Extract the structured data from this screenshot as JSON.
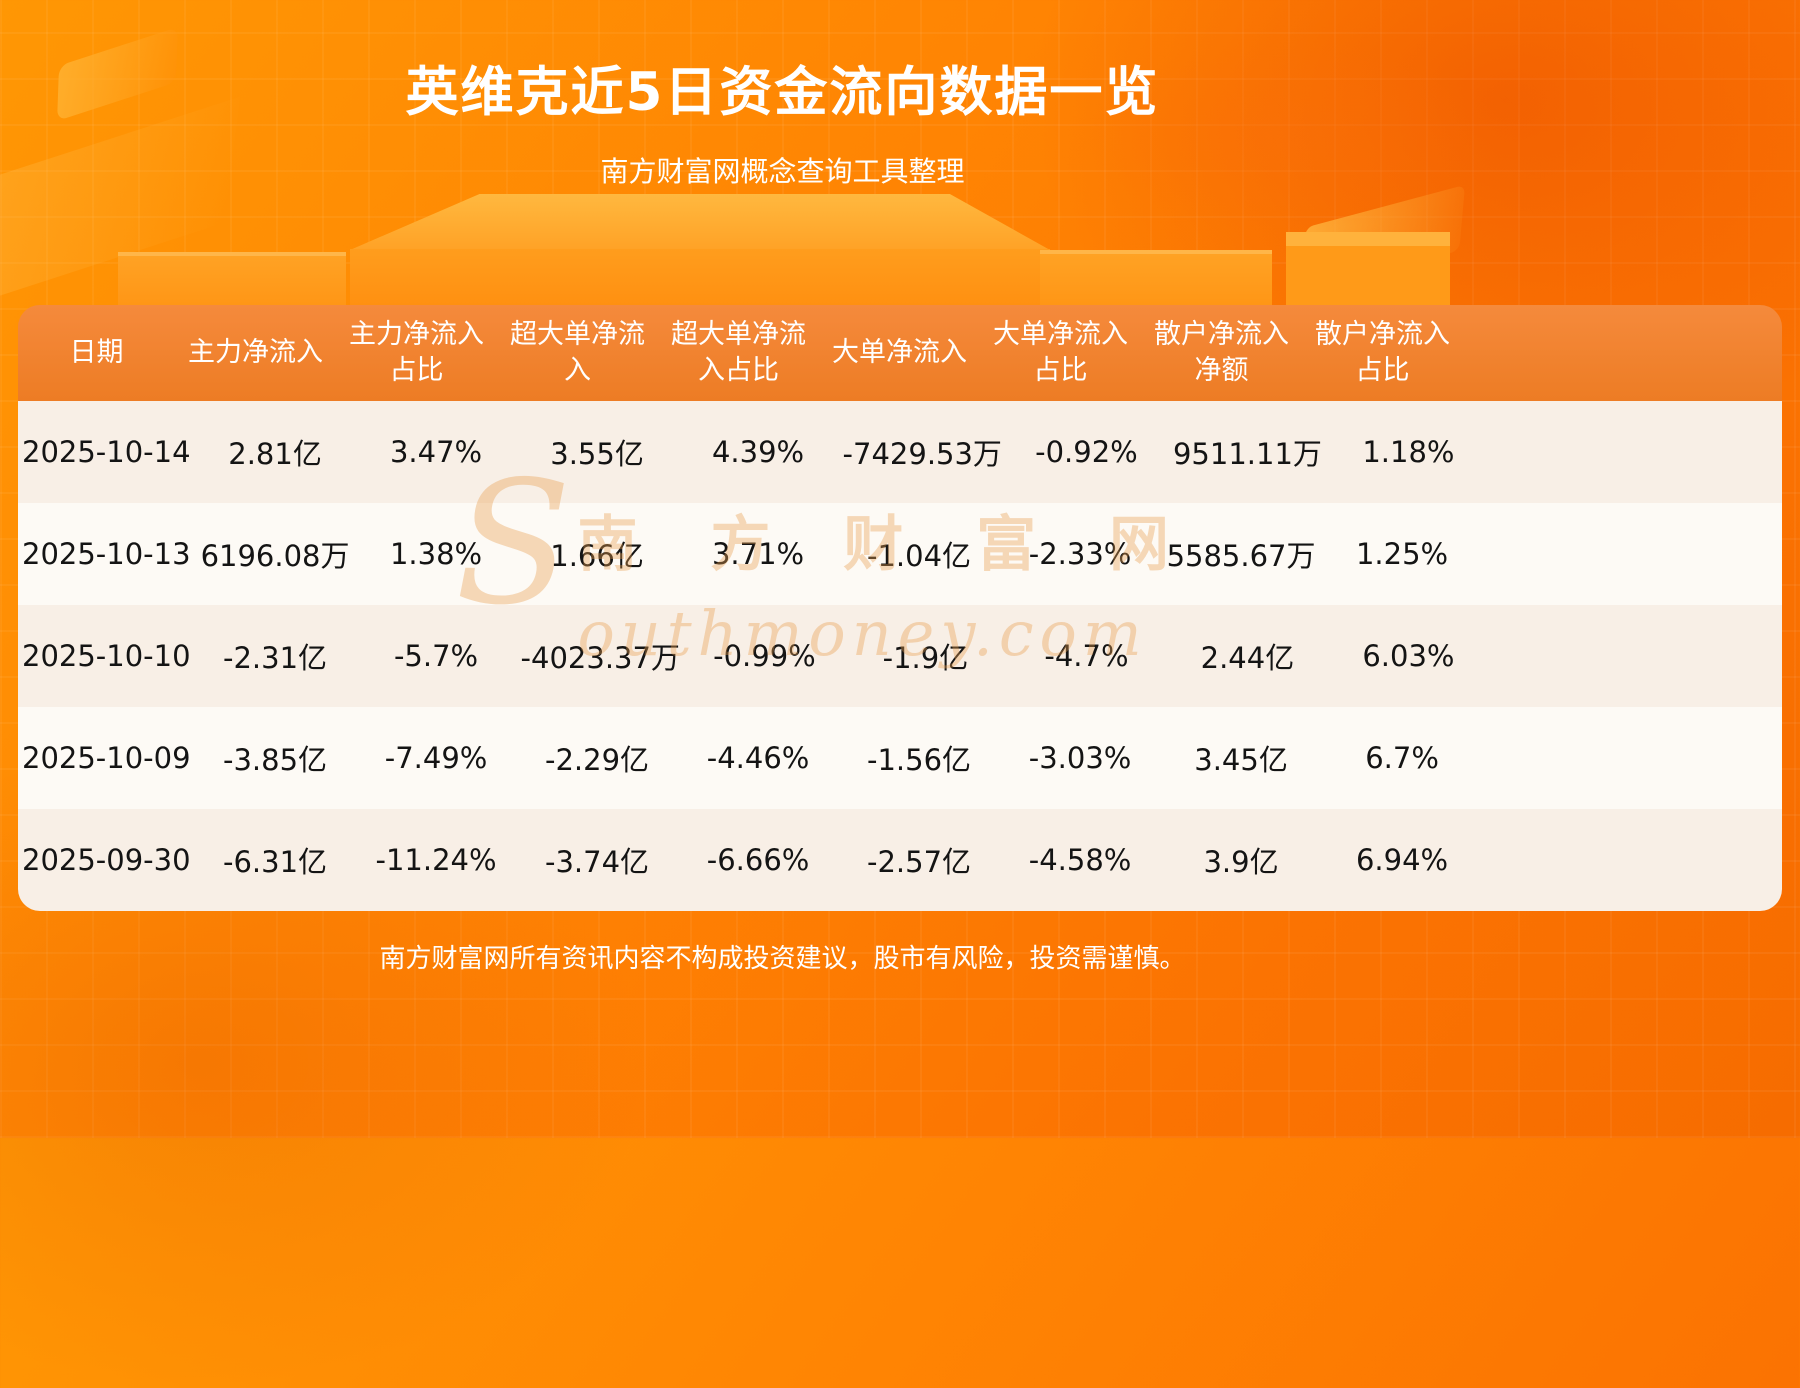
{
  "page": {
    "title": "英维克近5日资金流向数据一览",
    "subtitle": "南方财富网概念查询工具整理",
    "footer": "南方财富网所有资讯内容不构成投资建议，股市有风险，投资需谨慎。"
  },
  "watermark": {
    "initial": "S",
    "chinese": "南 方 财 富 网",
    "latin": "outhmoney.com"
  },
  "colors": {
    "accent": "#ff7a00",
    "table_header_bg": "#ef7f2b",
    "row_cream": "#f8efe6",
    "row_white": "#fdfaf5",
    "title_text": "#ffffff",
    "body_text": "#141414"
  },
  "chart_data": {
    "type": "table",
    "title": "英维克近5日资金流向数据一览",
    "columns": [
      "日期",
      "主力净流入",
      "主力净流入占比",
      "超大单净流入",
      "超大单净流入占比",
      "大单净流入",
      "大单净流入占比",
      "散户净流入净额",
      "散户净流入占比"
    ],
    "rows": [
      [
        "2025-10-14",
        "2.81亿",
        "3.47%",
        "3.55亿",
        "4.39%",
        "-7429.53万",
        "-0.92%",
        "9511.11万",
        "1.18%"
      ],
      [
        "2025-10-13",
        "6196.08万",
        "1.38%",
        "1.66亿",
        "3.71%",
        "-1.04亿",
        "-2.33%",
        "5585.67万",
        "1.25%"
      ],
      [
        "2025-10-10",
        "-2.31亿",
        "-5.7%",
        "-4023.37万",
        "-0.99%",
        "-1.9亿",
        "-4.7%",
        "2.44亿",
        "6.03%"
      ],
      [
        "2025-10-09",
        "-3.85亿",
        "-7.49%",
        "-2.29亿",
        "-4.46%",
        "-1.56亿",
        "-3.03%",
        "3.45亿",
        "6.7%"
      ],
      [
        "2025-09-30",
        "-6.31亿",
        "-11.24%",
        "-3.74亿",
        "-6.66%",
        "-2.57亿",
        "-4.58%",
        "3.9亿",
        "6.94%"
      ]
    ]
  }
}
